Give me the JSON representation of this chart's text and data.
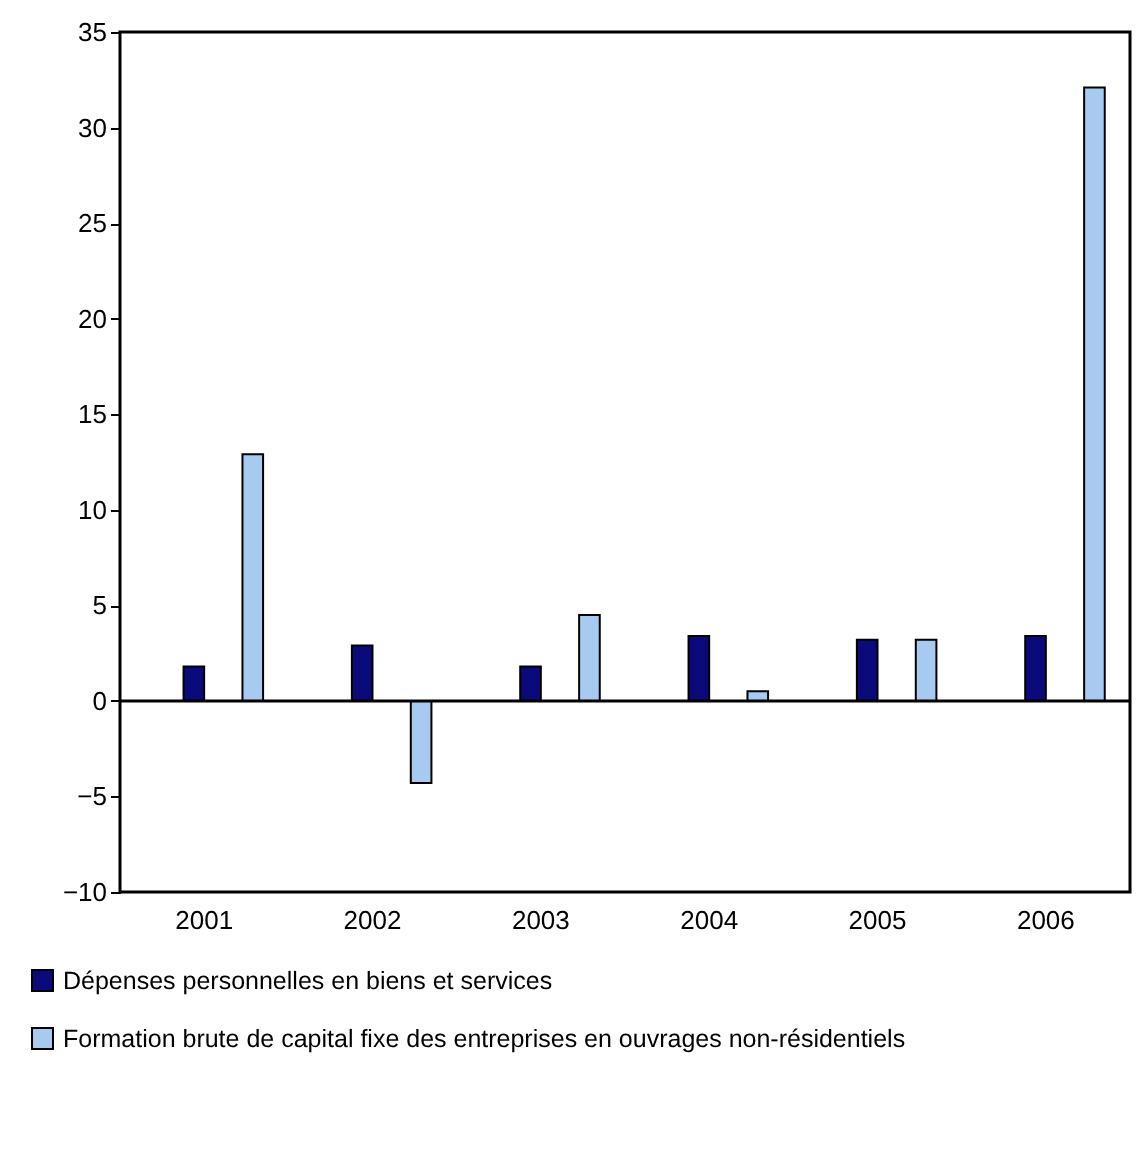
{
  "chart_data": {
    "type": "bar",
    "categories": [
      "2001",
      "2002",
      "2003",
      "2004",
      "2005",
      "2006"
    ],
    "series": [
      {
        "name": "Dépenses personnelles en biens et services",
        "color": "#0a0a7a",
        "values": [
          1.8,
          2.9,
          1.8,
          3.4,
          3.2,
          3.4
        ]
      },
      {
        "name": "Formation brute de capital fixe des entreprises en ouvrages non-résidentiels",
        "color": "#a6caf0",
        "values": [
          12.9,
          -4.3,
          4.5,
          0.5,
          3.2,
          32.1
        ]
      }
    ],
    "ylim": [
      -10,
      35
    ],
    "yticks": [
      -10,
      -5,
      0,
      5,
      10,
      15,
      20,
      25,
      30,
      35
    ],
    "grid": false,
    "legend": "bottom",
    "ref_lines": [
      {
        "axis": "y",
        "value": 0
      }
    ]
  }
}
